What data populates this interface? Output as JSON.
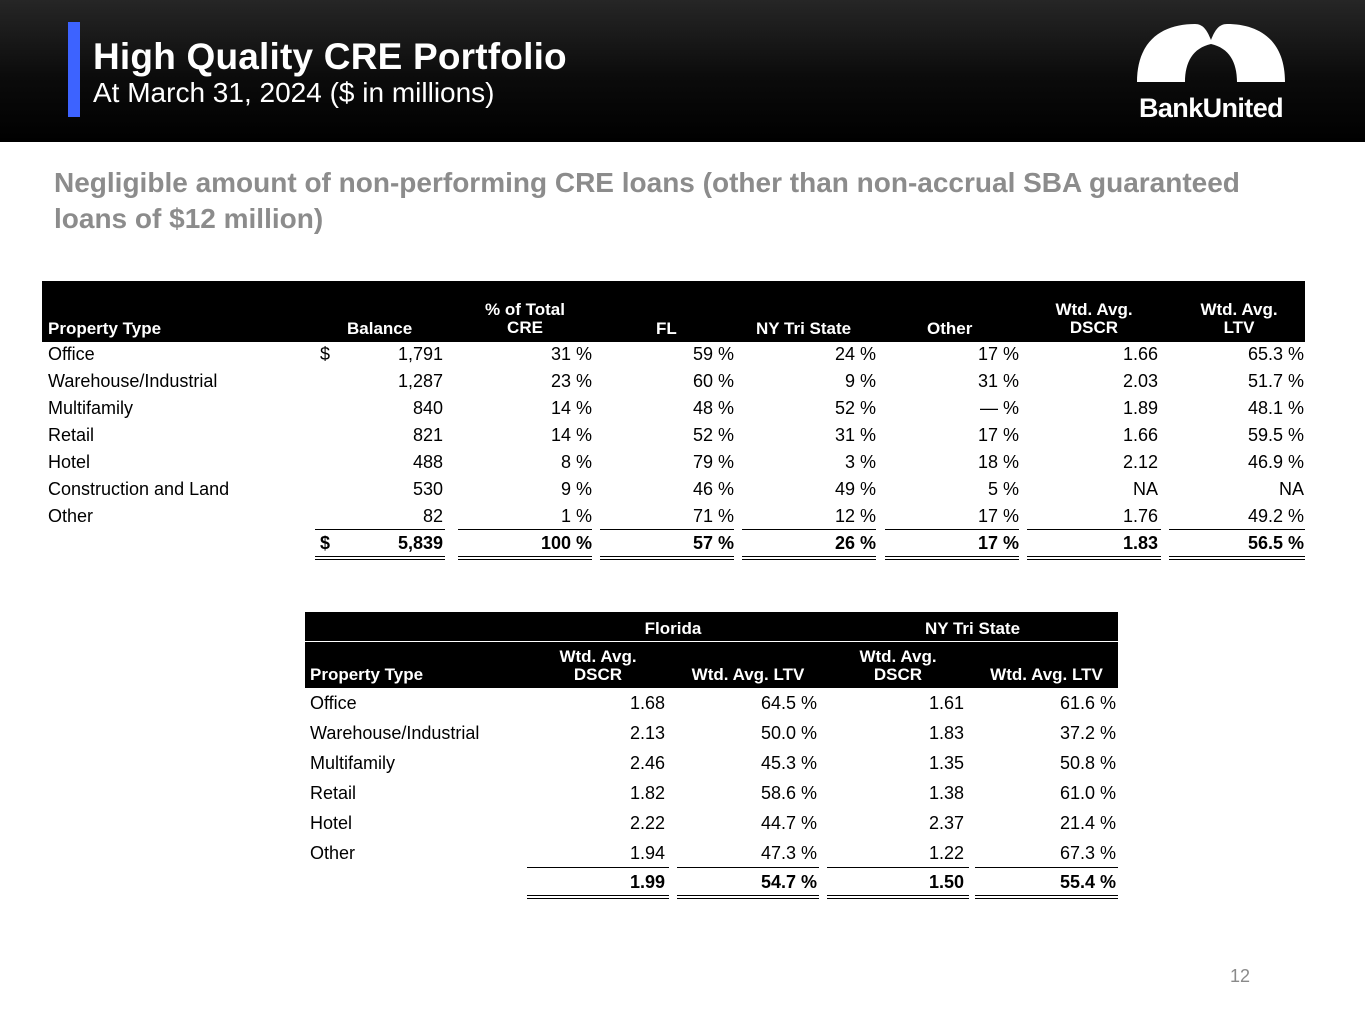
{
  "header": {
    "title": "High Quality CRE Portfolio",
    "subtitle": "At March 31, 2024 ($ in millions)",
    "logo_text": "BankUnited",
    "accent_color": "#3d63ff"
  },
  "headline": "Negligible amount of non-performing CRE loans (other than non-accrual SBA guaranteed loans of $12 million)",
  "table1": {
    "headers": {
      "property_type": "Property Type",
      "balance": "Balance",
      "pct_total_1": "% of Total",
      "pct_total_2": "CRE",
      "fl": "FL",
      "ny": "NY Tri State",
      "other": "Other",
      "dscr_1": "Wtd. Avg.",
      "dscr_2": "DSCR",
      "ltv_1": "Wtd. Avg.",
      "ltv_2": "LTV"
    },
    "rows": [
      {
        "type": "Office",
        "currency": "$",
        "balance": "1,791",
        "pct": "31 %",
        "fl": "59 %",
        "ny": "24 %",
        "other": "17 %",
        "dscr": "1.66",
        "ltv": "65.3 %"
      },
      {
        "type": "Warehouse/Industrial",
        "currency": "",
        "balance": "1,287",
        "pct": "23 %",
        "fl": "60 %",
        "ny": "9 %",
        "other": "31 %",
        "dscr": "2.03",
        "ltv": "51.7 %"
      },
      {
        "type": "Multifamily",
        "currency": "",
        "balance": "840",
        "pct": "14 %",
        "fl": "48 %",
        "ny": "52 %",
        "other": "— %",
        "dscr": "1.89",
        "ltv": "48.1 %"
      },
      {
        "type": "Retail",
        "currency": "",
        "balance": "821",
        "pct": "14 %",
        "fl": "52 %",
        "ny": "31 %",
        "other": "17 %",
        "dscr": "1.66",
        "ltv": "59.5 %"
      },
      {
        "type": "Hotel",
        "currency": "",
        "balance": "488",
        "pct": "8 %",
        "fl": "79 %",
        "ny": "3 %",
        "other": "18 %",
        "dscr": "2.12",
        "ltv": "46.9 %"
      },
      {
        "type": "Construction and Land",
        "currency": "",
        "balance": "530",
        "pct": "9 %",
        "fl": "46 %",
        "ny": "49 %",
        "other": "5 %",
        "dscr": "NA",
        "ltv": "NA"
      },
      {
        "type": "Other",
        "currency": "",
        "balance": "82",
        "pct": "1 %",
        "fl": "71 %",
        "ny": "12 %",
        "other": "17 %",
        "dscr": "1.76",
        "ltv": "49.2 %"
      }
    ],
    "total": {
      "type": "",
      "currency": "$",
      "balance": "5,839",
      "pct": "100 %",
      "fl": "57 %",
      "ny": "26 %",
      "other": "17 %",
      "dscr": "1.83",
      "ltv": "56.5 %"
    }
  },
  "table2": {
    "headers": {
      "florida": "Florida",
      "ny_tri_state": "NY Tri State",
      "property_type": "Property Type",
      "fl_dscr_1": "Wtd. Avg.",
      "fl_dscr_2": "DSCR",
      "fl_ltv": "Wtd. Avg. LTV",
      "ny_dscr_1": "Wtd. Avg.",
      "ny_dscr_2": "DSCR",
      "ny_ltv": "Wtd. Avg. LTV"
    },
    "rows": [
      {
        "type": "Office",
        "fl_dscr": "1.68",
        "fl_ltv": "64.5 %",
        "ny_dscr": "1.61",
        "ny_ltv": "61.6 %"
      },
      {
        "type": "Warehouse/Industrial",
        "fl_dscr": "2.13",
        "fl_ltv": "50.0 %",
        "ny_dscr": "1.83",
        "ny_ltv": "37.2 %"
      },
      {
        "type": "Multifamily",
        "fl_dscr": "2.46",
        "fl_ltv": "45.3 %",
        "ny_dscr": "1.35",
        "ny_ltv": "50.8 %"
      },
      {
        "type": "Retail",
        "fl_dscr": "1.82",
        "fl_ltv": "58.6 %",
        "ny_dscr": "1.38",
        "ny_ltv": "61.0 %"
      },
      {
        "type": "Hotel",
        "fl_dscr": "2.22",
        "fl_ltv": "44.7 %",
        "ny_dscr": "2.37",
        "ny_ltv": "21.4 %"
      },
      {
        "type": "Other",
        "fl_dscr": "1.94",
        "fl_ltv": "47.3 %",
        "ny_dscr": "1.22",
        "ny_ltv": "67.3 %"
      }
    ],
    "total": {
      "type": "",
      "fl_dscr": "1.99",
      "fl_ltv": "54.7 %",
      "ny_dscr": "1.50",
      "ny_ltv": "55.4 %"
    }
  },
  "page_number": "12"
}
